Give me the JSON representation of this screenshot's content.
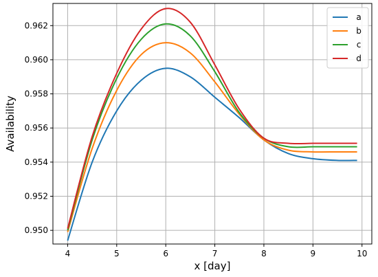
{
  "chart_data": {
    "type": "line",
    "title": "",
    "xlabel": "x [day]",
    "ylabel": "Availability",
    "xlim": [
      3.7,
      10.2
    ],
    "ylim": [
      0.9492,
      0.9633
    ],
    "x_ticks": [
      4,
      5,
      6,
      7,
      8,
      9,
      10
    ],
    "y_ticks": [
      0.95,
      0.952,
      0.954,
      0.956,
      0.958,
      0.96,
      0.962
    ],
    "x_tick_labels": [
      "4",
      "5",
      "6",
      "7",
      "8",
      "9",
      "10"
    ],
    "y_tick_labels": [
      "0.950",
      "0.952",
      "0.954",
      "0.956",
      "0.958",
      "0.960",
      "0.962"
    ],
    "grid": true,
    "legend_position": "top-right",
    "x": [
      4.0,
      4.5,
      5.0,
      5.5,
      6.0,
      6.5,
      7.0,
      7.5,
      8.0,
      8.5,
      9.0,
      9.5,
      9.9
    ],
    "series": [
      {
        "name": "a",
        "color": "#1f77b4",
        "values": [
          0.9494,
          0.954,
          0.957,
          0.9588,
          0.9595,
          0.959,
          0.9578,
          0.9566,
          0.9553,
          0.9545,
          0.9542,
          0.9541,
          0.9541
        ]
      },
      {
        "name": "b",
        "color": "#ff7f0e",
        "values": [
          0.9499,
          0.9548,
          0.9582,
          0.9603,
          0.961,
          0.9604,
          0.9587,
          0.9568,
          0.9553,
          0.9547,
          0.9546,
          0.9546,
          0.9546
        ]
      },
      {
        "name": "c",
        "color": "#2ca02c",
        "values": [
          0.95,
          0.9553,
          0.9589,
          0.9612,
          0.9621,
          0.9614,
          0.9593,
          0.9569,
          0.9554,
          0.9549,
          0.9549,
          0.9549,
          0.9549
        ]
      },
      {
        "name": "d",
        "color": "#d62728",
        "values": [
          0.9501,
          0.9555,
          0.9592,
          0.9618,
          0.963,
          0.9622,
          0.9597,
          0.9571,
          0.9554,
          0.9551,
          0.9551,
          0.9551,
          0.9551
        ]
      }
    ]
  }
}
